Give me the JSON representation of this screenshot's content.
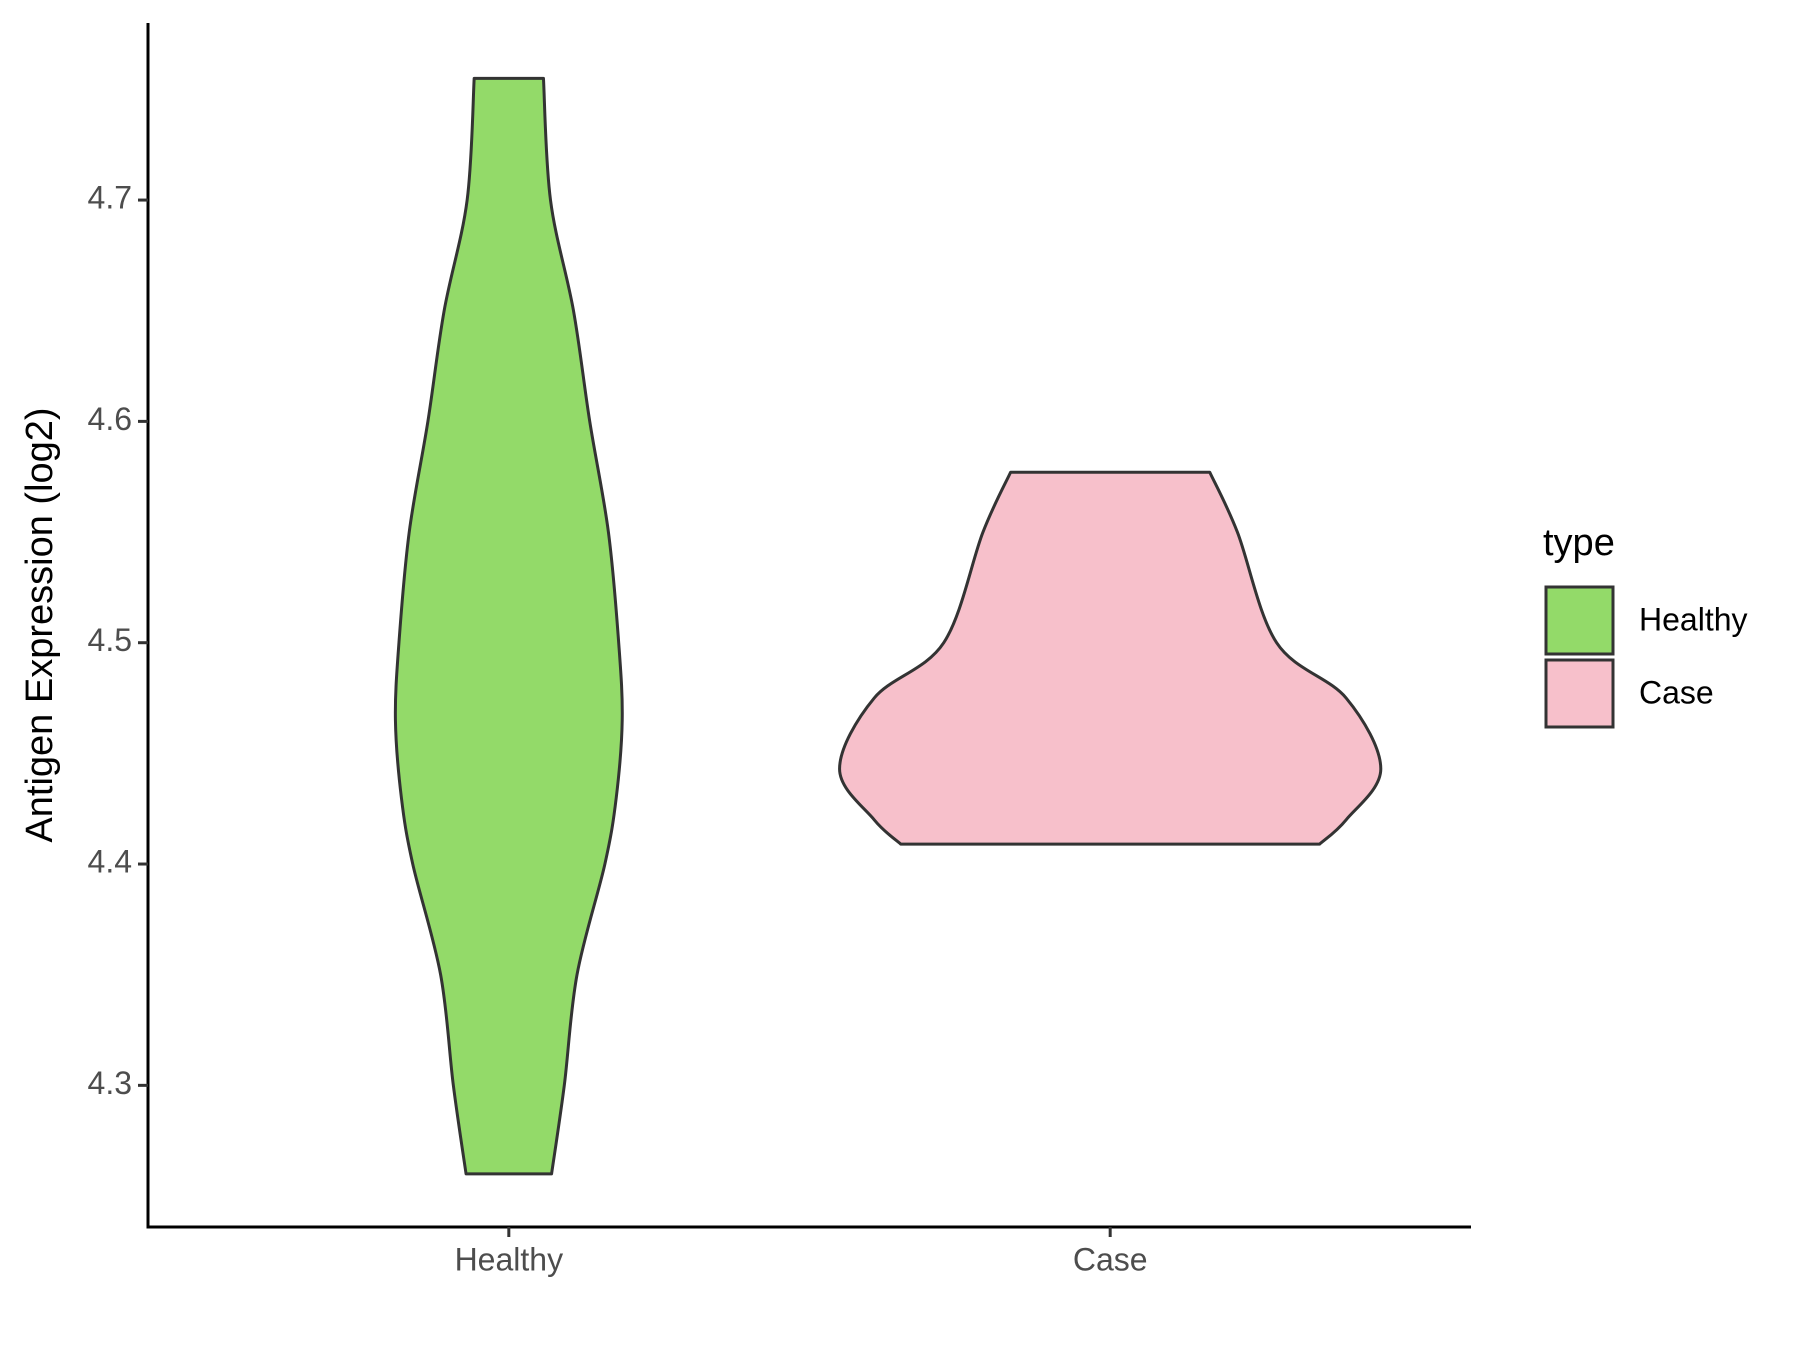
{
  "chart_data": {
    "type": "violin",
    "y_label": "Antigen Expression (log2)",
    "categories": [
      "Healthy",
      "Case"
    ],
    "legend_title": "type",
    "legend_position": "right",
    "ylim": [
      4.236,
      4.78
    ],
    "yticks": [
      4.3,
      4.4,
      4.5,
      4.6,
      4.7
    ],
    "grid": false,
    "series": [
      {
        "name": "Healthy",
        "color": "#93DA69",
        "y": [
          4.755,
          4.7,
          4.65,
          4.6,
          4.55,
          4.5,
          4.465,
          4.43,
          4.4,
          4.35,
          4.3,
          4.26
        ],
        "widths": [
          0.128,
          0.154,
          0.239,
          0.299,
          0.368,
          0.406,
          0.419,
          0.397,
          0.355,
          0.252,
          0.205,
          0.158
        ]
      },
      {
        "name": "Case",
        "color": "#F7C0CB",
        "y": [
          4.577,
          4.55,
          4.5,
          4.475,
          4.443,
          4.42,
          4.409
        ],
        "widths": [
          0.368,
          0.47,
          0.615,
          0.872,
          1.0,
          0.872,
          0.774
        ]
      }
    ]
  }
}
